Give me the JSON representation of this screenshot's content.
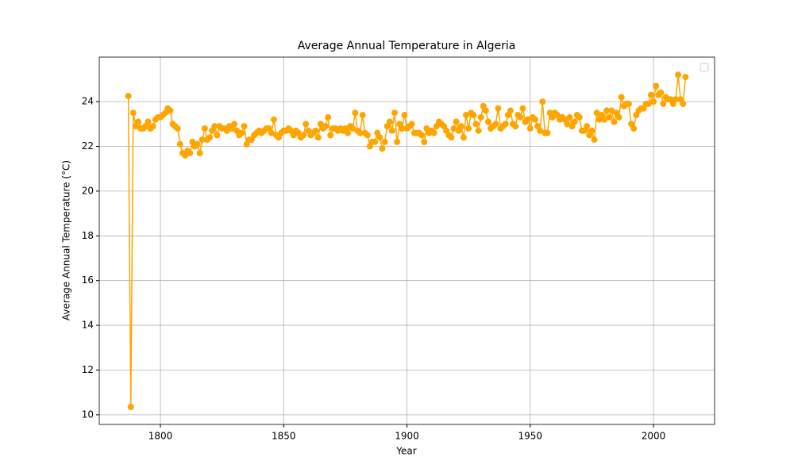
{
  "chart_data": {
    "type": "line",
    "title": "Average Annual Temperature in Algeria",
    "x_label": "Year",
    "y_label": "Average Annual Temperature (°C)",
    "x": [
      1787,
      1788,
      1789,
      1790,
      1791,
      1792,
      1793,
      1794,
      1795,
      1796,
      1797,
      1798,
      1799,
      1800,
      1801,
      1802,
      1803,
      1804,
      1805,
      1806,
      1807,
      1808,
      1809,
      1810,
      1811,
      1812,
      1813,
      1814,
      1815,
      1816,
      1817,
      1818,
      1819,
      1820,
      1821,
      1822,
      1823,
      1824,
      1825,
      1826,
      1827,
      1828,
      1829,
      1830,
      1831,
      1832,
      1833,
      1834,
      1835,
      1836,
      1837,
      1838,
      1839,
      1840,
      1841,
      1842,
      1843,
      1844,
      1845,
      1846,
      1847,
      1848,
      1849,
      1850,
      1851,
      1852,
      1853,
      1854,
      1855,
      1856,
      1857,
      1858,
      1859,
      1860,
      1861,
      1862,
      1863,
      1864,
      1865,
      1866,
      1867,
      1868,
      1869,
      1870,
      1871,
      1872,
      1873,
      1874,
      1875,
      1876,
      1877,
      1878,
      1879,
      1880,
      1881,
      1882,
      1883,
      1884,
      1885,
      1886,
      1887,
      1888,
      1889,
      1890,
      1891,
      1892,
      1893,
      1894,
      1895,
      1896,
      1897,
      1898,
      1899,
      1900,
      1901,
      1902,
      1903,
      1904,
      1905,
      1906,
      1907,
      1908,
      1909,
      1910,
      1911,
      1912,
      1913,
      1914,
      1915,
      1916,
      1917,
      1918,
      1919,
      1920,
      1921,
      1922,
      1923,
      1924,
      1925,
      1926,
      1927,
      1928,
      1929,
      1930,
      1931,
      1932,
      1933,
      1934,
      1935,
      1936,
      1937,
      1938,
      1939,
      1940,
      1941,
      1942,
      1943,
      1944,
      1945,
      1946,
      1947,
      1948,
      1949,
      1950,
      1951,
      1952,
      1953,
      1954,
      1955,
      1956,
      1957,
      1958,
      1959,
      1960,
      1961,
      1962,
      1963,
      1964,
      1965,
      1966,
      1967,
      1968,
      1969,
      1970,
      1971,
      1972,
      1973,
      1974,
      1975,
      1976,
      1977,
      1978,
      1979,
      1980,
      1981,
      1982,
      1983,
      1984,
      1985,
      1986,
      1987,
      1988,
      1989,
      1990,
      1991,
      1992,
      1993,
      1994,
      1995,
      1996,
      1997,
      1998,
      1999,
      2000,
      2001,
      2002,
      2003,
      2004,
      2005,
      2006,
      2007,
      2008,
      2009,
      2010,
      2011,
      2012,
      2013
    ],
    "series": [
      {
        "color": "#ffa500",
        "values": [
          24.25,
          10.35,
          23.5,
          22.9,
          23.1,
          22.8,
          22.8,
          22.9,
          23.1,
          22.8,
          22.9,
          23.2,
          23.3,
          23.3,
          23.4,
          23.5,
          23.7,
          23.6,
          23.0,
          22.9,
          22.8,
          22.1,
          21.7,
          21.6,
          21.8,
          21.7,
          22.2,
          22.0,
          22.1,
          21.7,
          22.3,
          22.8,
          22.3,
          22.4,
          22.7,
          22.9,
          22.5,
          22.9,
          22.8,
          22.8,
          22.7,
          22.9,
          22.8,
          23.0,
          22.7,
          22.5,
          22.6,
          22.9,
          22.1,
          22.3,
          22.3,
          22.5,
          22.6,
          22.7,
          22.6,
          22.7,
          22.8,
          22.8,
          22.6,
          23.2,
          22.5,
          22.4,
          22.6,
          22.7,
          22.7,
          22.8,
          22.7,
          22.5,
          22.7,
          22.6,
          22.4,
          22.5,
          23.0,
          22.7,
          22.5,
          22.6,
          22.7,
          22.4,
          23.0,
          22.8,
          22.9,
          23.3,
          22.5,
          22.8,
          22.8,
          22.7,
          22.8,
          22.7,
          22.8,
          22.6,
          22.9,
          22.8,
          23.5,
          22.7,
          22.6,
          23.4,
          22.6,
          22.5,
          22.0,
          22.2,
          22.2,
          22.6,
          22.4,
          21.9,
          22.2,
          22.9,
          23.1,
          22.7,
          23.5,
          22.2,
          23.0,
          22.8,
          23.4,
          22.8,
          22.9,
          23.0,
          22.6,
          22.6,
          22.6,
          22.5,
          22.2,
          22.8,
          22.6,
          22.7,
          22.6,
          22.9,
          23.1,
          23.0,
          22.9,
          22.7,
          22.5,
          22.4,
          22.8,
          23.1,
          22.7,
          22.9,
          22.4,
          23.4,
          22.8,
          23.5,
          23.4,
          23.0,
          22.7,
          23.3,
          23.8,
          23.6,
          23.1,
          22.8,
          22.9,
          23.0,
          23.7,
          22.8,
          22.9,
          23.0,
          23.4,
          23.6,
          23.0,
          22.9,
          23.4,
          23.3,
          23.7,
          23.1,
          23.2,
          22.8,
          23.3,
          23.2,
          22.9,
          22.7,
          24.0,
          22.6,
          22.6,
          23.5,
          23.3,
          23.5,
          23.4,
          23.2,
          23.3,
          23.2,
          23.0,
          23.3,
          22.9,
          23.1,
          23.4,
          23.3,
          22.7,
          22.7,
          22.9,
          22.5,
          22.7,
          22.3,
          23.5,
          23.2,
          23.4,
          23.2,
          23.6,
          23.3,
          23.6,
          23.1,
          23.5,
          23.3,
          24.2,
          23.8,
          23.9,
          23.9,
          23.0,
          22.8,
          23.4,
          23.6,
          23.7,
          23.7,
          23.9,
          23.9,
          24.3,
          24.0,
          24.7,
          24.3,
          24.4,
          23.9,
          24.2,
          24.1,
          24.1,
          23.9,
          24.1,
          25.2,
          24.1,
          23.9,
          25.1
        ]
      }
    ],
    "xlim": [
      1775.2,
      2024.8
    ],
    "ylim": [
      9.57,
      25.99
    ],
    "xticks": [
      1800,
      1850,
      1900,
      1950,
      2000
    ],
    "yticks": [
      10,
      12,
      14,
      16,
      18,
      20,
      22,
      24
    ],
    "grid": true,
    "legend": "upper right"
  }
}
